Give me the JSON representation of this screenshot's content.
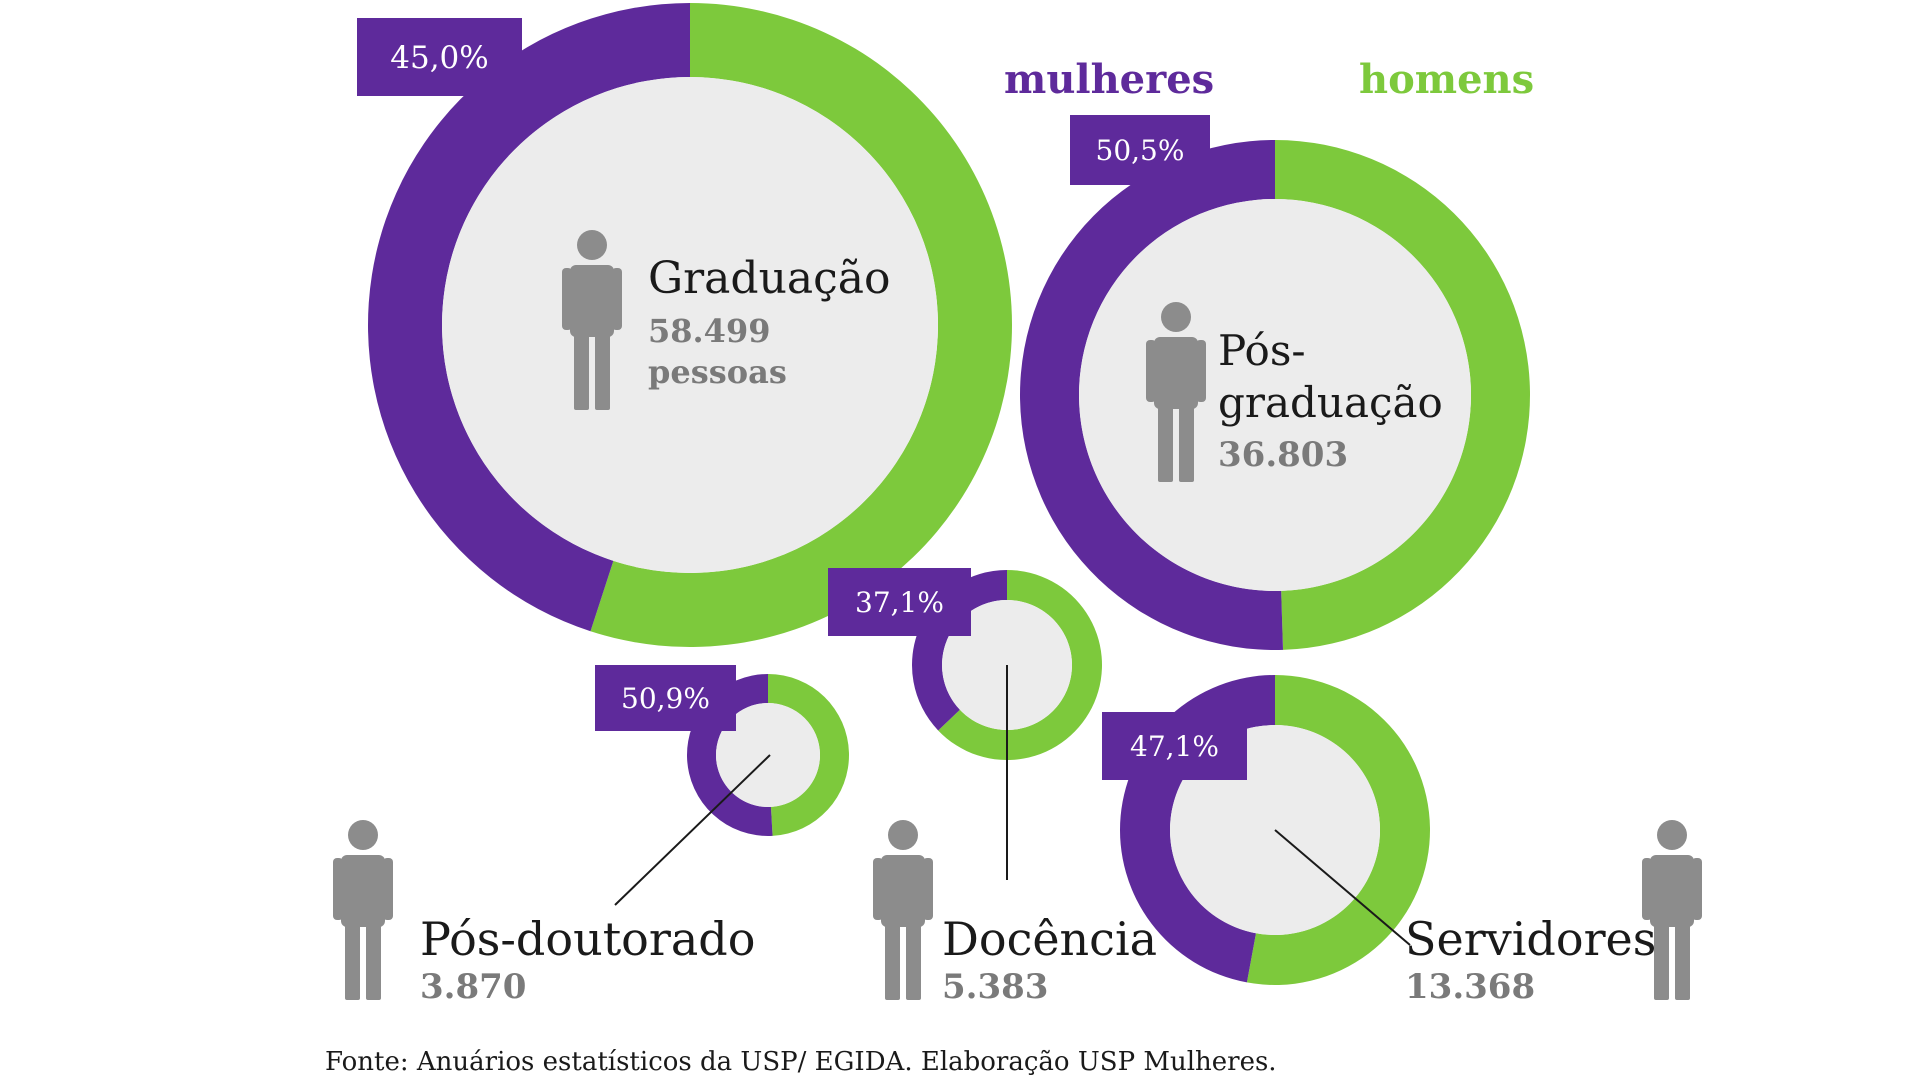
{
  "colors": {
    "women": "#5e2a9b",
    "men": "#7dc93c",
    "center": "#ececec",
    "person": "#8c8c8c",
    "label_box": "#5e2a9b",
    "label_text": "#ffffff",
    "title_text": "#1a1a1a",
    "count_text": "#7a7a7a",
    "leader": "#1a1a1a"
  },
  "legend": {
    "women": "mulheres",
    "men": "homens"
  },
  "source": "Fonte: Anuários estatísticos da USP/ EGIDA. Elaboração USP Mulheres.",
  "chart_data": {
    "type": "donut",
    "series": [
      {
        "name": "mulheres"
      },
      {
        "name": "homens"
      }
    ],
    "categories": [
      {
        "label_lines": [
          "Graduação"
        ],
        "count_lines": [
          "58.499",
          "pessoas"
        ],
        "women_pct": 45.0,
        "women_label": "45,0%",
        "total": 58499
      },
      {
        "label_lines": [
          "Pós-",
          "graduação"
        ],
        "count_lines": [
          "36.803"
        ],
        "women_pct": 50.5,
        "women_label": "50,5%",
        "total": 36803
      },
      {
        "label_lines": [
          "Pós-doutorado"
        ],
        "count_lines": [
          "3.870"
        ],
        "women_pct": 50.9,
        "women_label": "50,9%",
        "total": 3870
      },
      {
        "label_lines": [
          "Docência"
        ],
        "count_lines": [
          "5.383"
        ],
        "women_pct": 37.1,
        "women_label": "37,1%",
        "total": 5383
      },
      {
        "label_lines": [
          "Servidores"
        ],
        "count_lines": [
          "13.368"
        ],
        "women_pct": 47.1,
        "women_label": "47,1%",
        "total": 13368
      }
    ]
  }
}
